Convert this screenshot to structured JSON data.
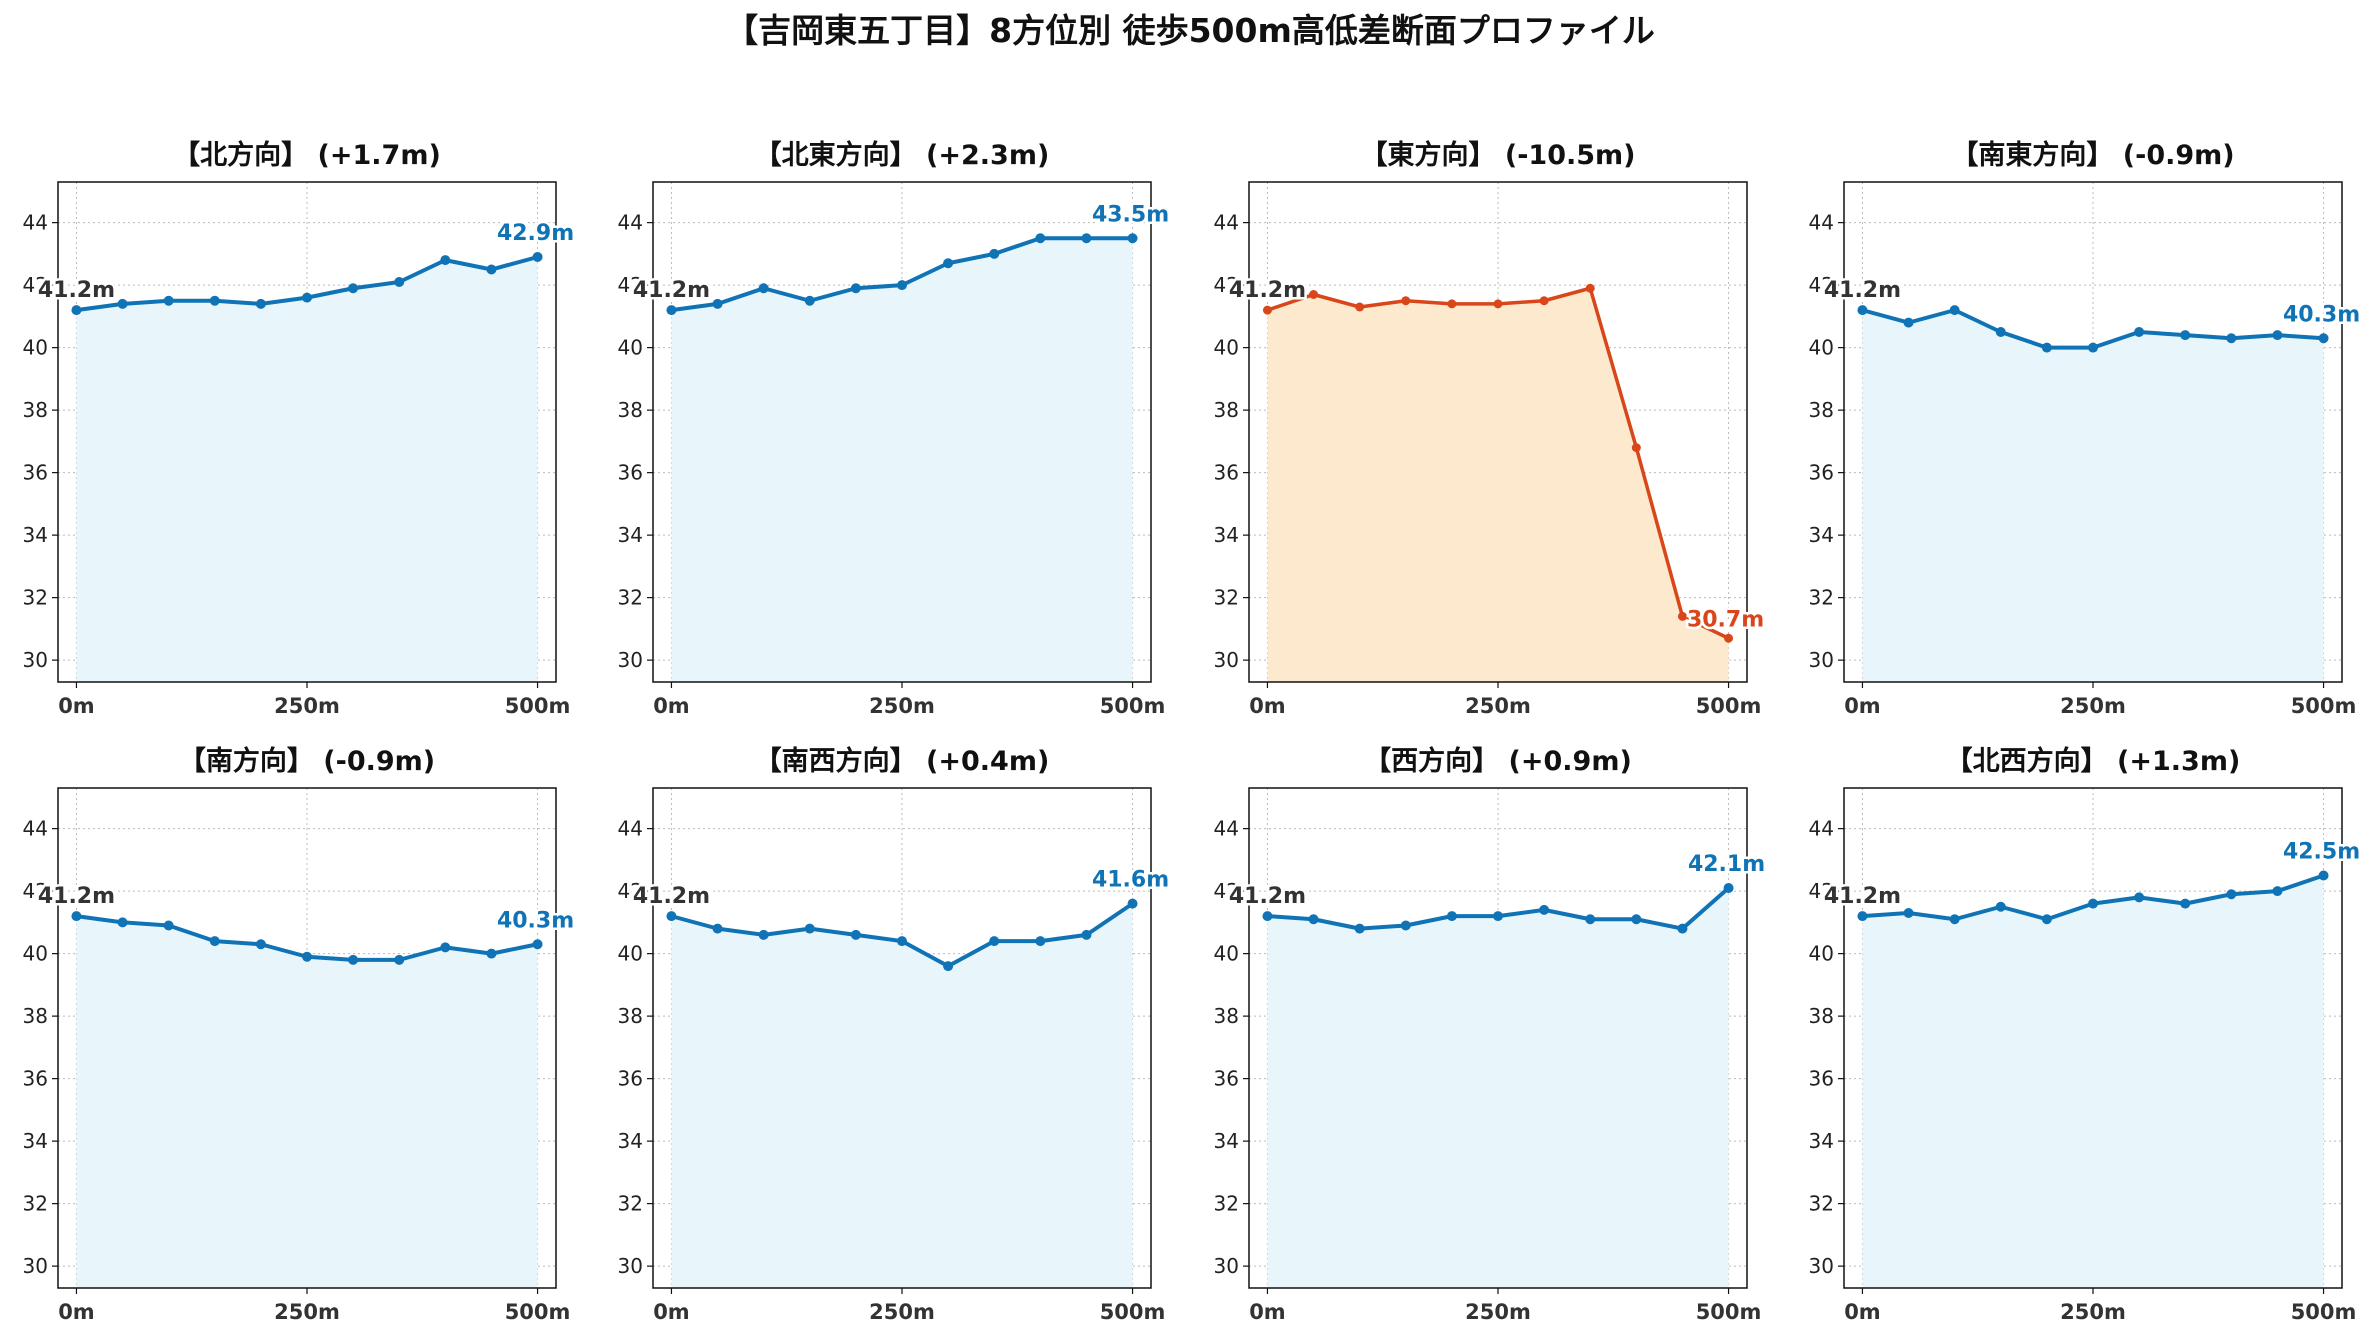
{
  "figure_title": "【吉岡東五丁目】8方位別 徒歩500m高低差断面プロファイル",
  "colors": {
    "normal_line": "#0f73b6",
    "normal_fill": "#e8f6fc",
    "drop_line": "#d9461a",
    "drop_fill": "#fde9cd",
    "start_label": "#333333",
    "grid": "#bbbbbb"
  },
  "chart_data": [
    {
      "type": "area",
      "title": "【北方向】 (+1.7m)",
      "x": [
        0,
        50,
        100,
        150,
        200,
        250,
        300,
        350,
        400,
        450,
        500
      ],
      "y": [
        41.2,
        41.4,
        41.5,
        41.5,
        41.4,
        41.6,
        41.9,
        42.1,
        42.8,
        42.5,
        42.9
      ],
      "start_label": "41.2m",
      "end_label": "42.9m",
      "style": "normal",
      "xticks": [
        0,
        250,
        500
      ],
      "xtick_labels": [
        "0m",
        "250m",
        "500m"
      ],
      "yticks": [
        30,
        32,
        34,
        36,
        38,
        40,
        42,
        44
      ],
      "ytick_labels": [
        "30",
        "32",
        "34",
        "36",
        "38",
        "40",
        "42",
        "44"
      ],
      "xlim": [
        -20,
        520
      ],
      "ylim": [
        29.3,
        45.3
      ],
      "grid": true
    },
    {
      "type": "area",
      "title": "【北東方向】 (+2.3m)",
      "x": [
        0,
        50,
        100,
        150,
        200,
        250,
        300,
        350,
        400,
        450,
        500
      ],
      "y": [
        41.2,
        41.4,
        41.9,
        41.5,
        41.9,
        42.0,
        42.7,
        43.0,
        43.5,
        43.5,
        43.5
      ],
      "start_label": "41.2m",
      "end_label": "43.5m",
      "style": "normal",
      "xticks": [
        0,
        250,
        500
      ],
      "xtick_labels": [
        "0m",
        "250m",
        "500m"
      ],
      "yticks": [
        30,
        32,
        34,
        36,
        38,
        40,
        42,
        44
      ],
      "ytick_labels": [
        "30",
        "32",
        "34",
        "36",
        "38",
        "40",
        "42",
        "44"
      ],
      "xlim": [
        -20,
        520
      ],
      "ylim": [
        29.3,
        45.3
      ],
      "grid": true
    },
    {
      "type": "area",
      "title": "【東方向】 (-10.5m)",
      "x": [
        0,
        50,
        100,
        150,
        200,
        250,
        300,
        350,
        400,
        450,
        500
      ],
      "y": [
        41.2,
        41.7,
        41.3,
        41.5,
        41.4,
        41.4,
        41.5,
        41.9,
        36.8,
        31.4,
        30.7
      ],
      "start_label": "41.2m",
      "end_label": "30.7m",
      "style": "drop",
      "xticks": [
        0,
        250,
        500
      ],
      "xtick_labels": [
        "0m",
        "250m",
        "500m"
      ],
      "yticks": [
        30,
        32,
        34,
        36,
        38,
        40,
        42,
        44
      ],
      "ytick_labels": [
        "30",
        "32",
        "34",
        "36",
        "38",
        "40",
        "42",
        "44"
      ],
      "xlim": [
        -20,
        520
      ],
      "ylim": [
        29.3,
        45.3
      ],
      "grid": true
    },
    {
      "type": "area",
      "title": "【南東方向】 (-0.9m)",
      "x": [
        0,
        50,
        100,
        150,
        200,
        250,
        300,
        350,
        400,
        450,
        500
      ],
      "y": [
        41.2,
        40.8,
        41.2,
        40.5,
        40.0,
        40.0,
        40.5,
        40.4,
        40.3,
        40.4,
        40.3
      ],
      "start_label": "41.2m",
      "end_label": "40.3m",
      "style": "normal",
      "xticks": [
        0,
        250,
        500
      ],
      "xtick_labels": [
        "0m",
        "250m",
        "500m"
      ],
      "yticks": [
        30,
        32,
        34,
        36,
        38,
        40,
        42,
        44
      ],
      "ytick_labels": [
        "30",
        "32",
        "34",
        "36",
        "38",
        "40",
        "42",
        "44"
      ],
      "xlim": [
        -20,
        520
      ],
      "ylim": [
        29.3,
        45.3
      ],
      "grid": true
    },
    {
      "type": "area",
      "title": "【南方向】 (-0.9m)",
      "x": [
        0,
        50,
        100,
        150,
        200,
        250,
        300,
        350,
        400,
        450,
        500
      ],
      "y": [
        41.2,
        41.0,
        40.9,
        40.4,
        40.3,
        39.9,
        39.8,
        39.8,
        40.2,
        40.0,
        40.3
      ],
      "start_label": "41.2m",
      "end_label": "40.3m",
      "style": "normal",
      "xticks": [
        0,
        250,
        500
      ],
      "xtick_labels": [
        "0m",
        "250m",
        "500m"
      ],
      "yticks": [
        30,
        32,
        34,
        36,
        38,
        40,
        42,
        44
      ],
      "ytick_labels": [
        "30",
        "32",
        "34",
        "36",
        "38",
        "40",
        "42",
        "44"
      ],
      "xlim": [
        -20,
        520
      ],
      "ylim": [
        29.3,
        45.3
      ],
      "grid": true
    },
    {
      "type": "area",
      "title": "【南西方向】 (+0.4m)",
      "x": [
        0,
        50,
        100,
        150,
        200,
        250,
        300,
        350,
        400,
        450,
        500
      ],
      "y": [
        41.2,
        40.8,
        40.6,
        40.8,
        40.6,
        40.4,
        39.6,
        40.4,
        40.4,
        40.6,
        41.6
      ],
      "start_label": "41.2m",
      "end_label": "41.6m",
      "style": "normal",
      "xticks": [
        0,
        250,
        500
      ],
      "xtick_labels": [
        "0m",
        "250m",
        "500m"
      ],
      "yticks": [
        30,
        32,
        34,
        36,
        38,
        40,
        42,
        44
      ],
      "ytick_labels": [
        "30",
        "32",
        "34",
        "36",
        "38",
        "40",
        "42",
        "44"
      ],
      "xlim": [
        -20,
        520
      ],
      "ylim": [
        29.3,
        45.3
      ],
      "grid": true
    },
    {
      "type": "area",
      "title": "【西方向】 (+0.9m)",
      "x": [
        0,
        50,
        100,
        150,
        200,
        250,
        300,
        350,
        400,
        450,
        500
      ],
      "y": [
        41.2,
        41.1,
        40.8,
        40.9,
        41.2,
        41.2,
        41.4,
        41.1,
        41.1,
        40.8,
        42.1
      ],
      "start_label": "41.2m",
      "end_label": "42.1m",
      "style": "normal",
      "xticks": [
        0,
        250,
        500
      ],
      "xtick_labels": [
        "0m",
        "250m",
        "500m"
      ],
      "yticks": [
        30,
        32,
        34,
        36,
        38,
        40,
        42,
        44
      ],
      "ytick_labels": [
        "30",
        "32",
        "34",
        "36",
        "38",
        "40",
        "42",
        "44"
      ],
      "xlim": [
        -20,
        520
      ],
      "ylim": [
        29.3,
        45.3
      ],
      "grid": true
    },
    {
      "type": "area",
      "title": "【北西方向】 (+1.3m)",
      "x": [
        0,
        50,
        100,
        150,
        200,
        250,
        300,
        350,
        400,
        450,
        500
      ],
      "y": [
        41.2,
        41.3,
        41.1,
        41.5,
        41.1,
        41.6,
        41.8,
        41.6,
        41.9,
        42.0,
        42.5
      ],
      "start_label": "41.2m",
      "end_label": "42.5m",
      "style": "normal",
      "xticks": [
        0,
        250,
        500
      ],
      "xtick_labels": [
        "0m",
        "250m",
        "500m"
      ],
      "yticks": [
        30,
        32,
        34,
        36,
        38,
        40,
        42,
        44
      ],
      "ytick_labels": [
        "30",
        "32",
        "34",
        "36",
        "38",
        "40",
        "42",
        "44"
      ],
      "xlim": [
        -20,
        520
      ],
      "ylim": [
        29.3,
        45.3
      ],
      "grid": true
    }
  ]
}
